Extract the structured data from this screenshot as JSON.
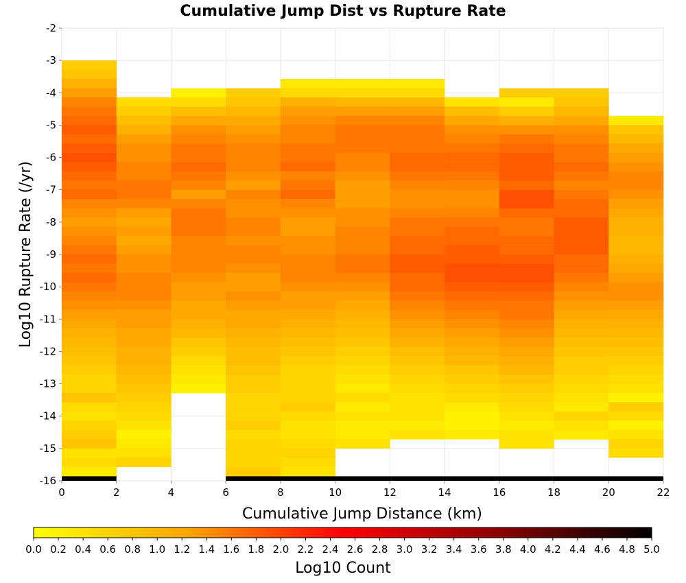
{
  "chart_data": {
    "type": "heatmap",
    "title": "Cumulative Jump Dist vs Rupture Rate",
    "xlabel": "Cumulative Jump Distance (km)",
    "ylabel": "Log10 Rupture Rate (/yr)",
    "xlim": [
      0,
      22
    ],
    "ylim": [
      -16,
      -2
    ],
    "x_bin_width": 2,
    "y_bin_height": 0.2857,
    "x_ticks": [
      "0",
      "2",
      "4",
      "6",
      "8",
      "10",
      "12",
      "14",
      "16",
      "18",
      "20",
      "22"
    ],
    "y_ticks": [
      "-2",
      "-3",
      "-4",
      "-5",
      "-6",
      "-7",
      "-8",
      "-9",
      "-10",
      "-11",
      "-12",
      "-13",
      "-14",
      "-15",
      "-16"
    ],
    "grid": true,
    "colorbar": {
      "label": "Log10 Count",
      "range": [
        0,
        5
      ],
      "ticks": [
        "0.0",
        "0.2",
        "0.4",
        "0.6",
        "0.8",
        "1.0",
        "1.2",
        "1.4",
        "1.6",
        "1.8",
        "2.0",
        "2.2",
        "2.4",
        "2.6",
        "2.8",
        "3.0",
        "3.2",
        "3.4",
        "3.6",
        "3.8",
        "4.0",
        "4.2",
        "4.4",
        "4.6",
        "4.8",
        "5.0"
      ],
      "colors": [
        "#ffff00",
        "#ffa500",
        "#ff0000",
        "#8b0000",
        "#000000"
      ]
    },
    "y_bin_tops": [
      -3.0,
      -4.14,
      -3.86,
      -3.86,
      -3.57,
      -3.57,
      -3.57,
      -4.14,
      -3.86,
      -3.86,
      -4.71
    ],
    "y_bin_bottoms": [
      -15.86,
      -15.57,
      -15.29,
      -15.86,
      -15.86,
      -15.86,
      -15.86,
      -15.86,
      -15.86,
      -15.86,
      -15.29
    ],
    "columns": [
      {
        "x": 1,
        "values": [
          0.7,
          0.8,
          1.1,
          1.3,
          1.5,
          1.6,
          1.7,
          1.8,
          1.7,
          1.8,
          1.9,
          1.8,
          1.7,
          1.6,
          1.7,
          1.5,
          1.4,
          1.3,
          1.4,
          1.5,
          1.6,
          1.7,
          1.6,
          1.7,
          1.6,
          1.5,
          1.4,
          1.3,
          1.2,
          1.1,
          1.0,
          0.9,
          0.8,
          0.7,
          0.6,
          0.6,
          0.8,
          0.5,
          0.4,
          0.6,
          0.7,
          0.8,
          0.4,
          0.5,
          0.3
        ]
      },
      {
        "x": 3,
        "values": [
          0.5,
          0.7,
          0.9,
          1.1,
          1.3,
          1.4,
          1.4,
          1.5,
          1.5,
          1.6,
          1.6,
          1.5,
          1.3,
          1.2,
          1.3,
          1.2,
          1.3,
          1.4,
          1.4,
          1.5,
          1.5,
          1.5,
          1.4,
          1.3,
          1.3,
          1.2,
          1.2,
          1.1,
          1.1,
          1.0,
          0.9,
          0.8,
          0.7,
          0.6,
          0.5,
          0.4,
          0.2,
          0.3,
          0.4,
          0.6,
          0.3,
          0.2,
          0.2,
          0.2
        ]
      },
      {
        "x": 5,
        "values": [
          0.2,
          0.5,
          0.9,
          1.2,
          1.4,
          1.5,
          1.6,
          1.6,
          1.7,
          1.6,
          1.5,
          1.3,
          1.5,
          1.6,
          1.6,
          1.6,
          1.5,
          1.5,
          1.5,
          1.5,
          1.4,
          1.3,
          1.3,
          1.2,
          1.2,
          1.1,
          1.0,
          0.8,
          0.7,
          0.5,
          0.4,
          0.3,
          0.2
        ]
      },
      {
        "x": 7,
        "values": [
          0.7,
          0.8,
          1.0,
          1.2,
          1.3,
          1.4,
          1.5,
          1.5,
          1.5,
          1.4,
          1.3,
          1.5,
          1.4,
          1.4,
          1.5,
          1.5,
          1.4,
          1.5,
          1.5,
          1.4,
          1.3,
          1.3,
          1.4,
          1.3,
          1.2,
          1.2,
          1.1,
          1.0,
          0.9,
          0.9,
          0.8,
          0.7,
          0.7,
          0.6,
          0.6,
          0.6,
          0.7,
          0.5,
          0.6,
          0.6,
          0.6,
          0.7,
          0.5,
          0.7,
          0.6,
          0.5,
          0.6
        ]
      },
      {
        "x": 9,
        "values": [
          0.3,
          0.5,
          1.1,
          1.3,
          1.4,
          1.5,
          1.5,
          1.6,
          1.6,
          1.7,
          1.5,
          1.6,
          1.7,
          1.5,
          1.4,
          1.3,
          1.3,
          1.4,
          1.4,
          1.5,
          1.5,
          1.5,
          1.4,
          1.3,
          1.3,
          1.2,
          1.1,
          1.0,
          0.9,
          0.8,
          0.7,
          0.6,
          0.6,
          0.6,
          0.6,
          0.7,
          0.5,
          0.4,
          0.4,
          0.5,
          0.6,
          0.5,
          0.4
        ]
      },
      {
        "x": 11,
        "values": [
          0.3,
          0.5,
          1.0,
          1.3,
          1.5,
          1.6,
          1.6,
          1.6,
          1.5,
          1.5,
          1.4,
          1.3,
          1.3,
          1.3,
          1.4,
          1.4,
          1.5,
          1.5,
          1.5,
          1.6,
          1.6,
          1.5,
          1.4,
          1.3,
          1.2,
          1.1,
          1.0,
          0.9,
          0.8,
          0.7,
          0.6,
          0.5,
          0.4,
          0.3,
          0.5,
          0.3,
          0.4,
          0.3,
          0.3,
          0.4
        ]
      },
      {
        "x": 13,
        "values": [
          0.3,
          0.5,
          1.0,
          1.3,
          1.5,
          1.6,
          1.6,
          1.6,
          1.7,
          1.7,
          1.6,
          1.5,
          1.4,
          1.4,
          1.5,
          1.6,
          1.6,
          1.7,
          1.7,
          1.8,
          1.8,
          1.7,
          1.7,
          1.6,
          1.5,
          1.4,
          1.3,
          1.2,
          1.1,
          0.9,
          0.8,
          0.7,
          0.6,
          0.5,
          0.4,
          0.4,
          0.4,
          0.3,
          0.4
        ]
      },
      {
        "x": 15,
        "values": [
          0.4,
          0.9,
          1.2,
          1.4,
          1.5,
          1.6,
          1.7,
          1.7,
          1.6,
          1.5,
          1.4,
          1.4,
          1.5,
          1.6,
          1.7,
          1.7,
          1.8,
          1.8,
          1.9,
          1.9,
          1.8,
          1.7,
          1.6,
          1.5,
          1.4,
          1.3,
          1.2,
          1.1,
          1.0,
          0.8,
          0.7,
          0.6,
          0.5,
          0.3,
          0.2,
          0.2,
          0.3
        ]
      },
      {
        "x": 17,
        "values": [
          0.7,
          0.3,
          0.7,
          1.1,
          1.4,
          1.6,
          1.7,
          1.8,
          1.8,
          1.8,
          1.7,
          1.9,
          1.9,
          1.7,
          1.6,
          1.6,
          1.7,
          1.7,
          1.8,
          1.9,
          1.9,
          1.8,
          1.7,
          1.6,
          1.6,
          1.5,
          1.4,
          1.3,
          1.2,
          1.1,
          1.0,
          0.8,
          0.7,
          0.6,
          0.5,
          0.4,
          0.3,
          0.4,
          0.4
        ]
      },
      {
        "x": 19,
        "values": [
          0.7,
          0.8,
          1.0,
          1.2,
          1.4,
          1.5,
          1.6,
          1.6,
          1.7,
          1.6,
          1.5,
          1.6,
          1.7,
          1.7,
          1.8,
          1.8,
          1.8,
          1.8,
          1.7,
          1.7,
          1.6,
          1.5,
          1.4,
          1.3,
          1.2,
          1.1,
          1.0,
          0.9,
          0.8,
          0.7,
          0.7,
          0.6,
          0.5,
          0.4,
          0.3,
          0.6,
          0.4,
          0.3
        ]
      },
      {
        "x": 21,
        "values": [
          0.3,
          0.8,
          1.0,
          1.2,
          1.3,
          1.4,
          1.5,
          1.5,
          1.4,
          1.3,
          1.2,
          1.1,
          1.1,
          1.0,
          1.0,
          1.1,
          1.2,
          1.3,
          1.4,
          1.4,
          1.3,
          1.2,
          1.1,
          1.0,
          0.9,
          0.8,
          0.7,
          0.6,
          0.5,
          0.4,
          0.2,
          0.7,
          0.5,
          0.2,
          0.4,
          0.6,
          0.5
        ]
      }
    ],
    "bottom_row": {
      "y": -15.93,
      "value": 5.0,
      "x_ranges": [
        [
          0,
          2
        ],
        [
          6,
          22
        ]
      ]
    }
  }
}
